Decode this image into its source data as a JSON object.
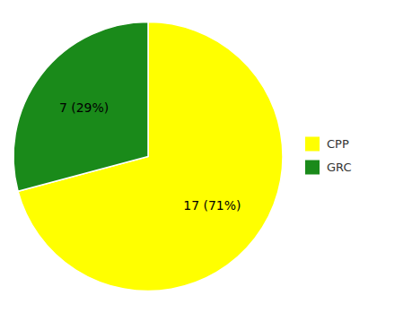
{
  "chart_data": {
    "type": "pie",
    "categories": [
      "CPP",
      "GRC"
    ],
    "values": [
      17,
      7
    ],
    "value_labels": [
      "17 (71%)",
      "7 (29%)"
    ],
    "colors": [
      "#FFFF00",
      "#1A8A1A"
    ],
    "data_labels": true,
    "legend": "right"
  }
}
